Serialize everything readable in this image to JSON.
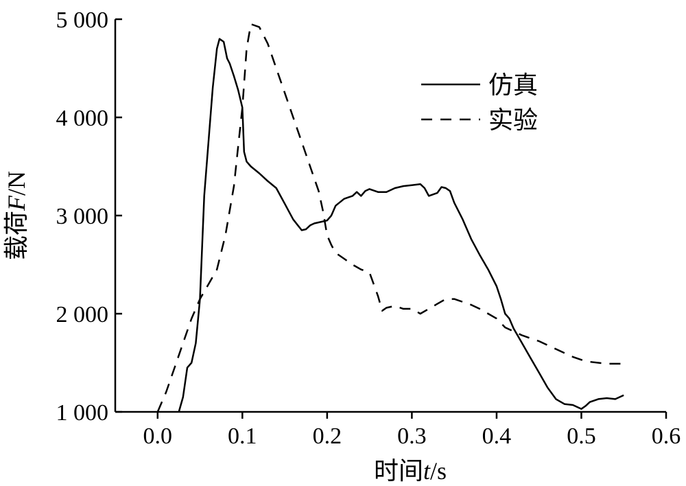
{
  "chart_data": {
    "type": "line",
    "xlabel_prefix": "时间",
    "xlabel_var": "t",
    "xlabel_unit": "/s",
    "ylabel_prefix": "载荷",
    "ylabel_var": "F",
    "ylabel_unit": "/N",
    "xlim": [
      -0.05,
      0.6
    ],
    "ylim": [
      1000,
      5000
    ],
    "xticks": [
      0.0,
      0.1,
      0.2,
      0.3,
      0.4,
      0.5,
      0.6
    ],
    "xtick_labels": [
      "0.0",
      "0.1",
      "0.2",
      "0.3",
      "0.4",
      "0.5",
      "0.6"
    ],
    "yticks": [
      1000,
      2000,
      3000,
      4000,
      5000
    ],
    "ytick_labels": [
      "1 000",
      "2 000",
      "3 000",
      "4 000",
      "5 000"
    ],
    "grid": false,
    "legend_position": "top-right",
    "series": [
      {
        "name": "仿真",
        "style": "solid",
        "x": [
          0.025,
          0.03,
          0.035,
          0.04,
          0.045,
          0.05,
          0.055,
          0.06,
          0.065,
          0.07,
          0.073,
          0.078,
          0.082,
          0.085,
          0.09,
          0.095,
          0.1,
          0.102,
          0.105,
          0.11,
          0.12,
          0.13,
          0.14,
          0.145,
          0.15,
          0.16,
          0.17,
          0.175,
          0.18,
          0.185,
          0.19,
          0.2,
          0.205,
          0.21,
          0.22,
          0.23,
          0.235,
          0.24,
          0.245,
          0.25,
          0.26,
          0.27,
          0.28,
          0.29,
          0.3,
          0.31,
          0.315,
          0.32,
          0.33,
          0.335,
          0.34,
          0.345,
          0.35,
          0.36,
          0.37,
          0.38,
          0.39,
          0.4,
          0.405,
          0.41,
          0.415,
          0.42,
          0.43,
          0.44,
          0.45,
          0.46,
          0.47,
          0.48,
          0.49,
          0.5,
          0.505,
          0.51,
          0.52,
          0.53,
          0.54,
          0.55
        ],
        "y": [
          1000,
          1150,
          1450,
          1500,
          1700,
          2150,
          3200,
          3750,
          4300,
          4700,
          4800,
          4770,
          4600,
          4550,
          4420,
          4280,
          4100,
          3650,
          3550,
          3500,
          3430,
          3350,
          3280,
          3200,
          3120,
          2960,
          2850,
          2860,
          2900,
          2920,
          2930,
          2950,
          3000,
          3100,
          3170,
          3200,
          3240,
          3200,
          3250,
          3270,
          3240,
          3240,
          3280,
          3300,
          3310,
          3320,
          3280,
          3200,
          3230,
          3290,
          3280,
          3250,
          3130,
          2960,
          2760,
          2600,
          2450,
          2280,
          2150,
          2000,
          1950,
          1850,
          1700,
          1550,
          1400,
          1250,
          1130,
          1080,
          1070,
          1030,
          1060,
          1100,
          1130,
          1140,
          1130,
          1170
        ]
      },
      {
        "name": "实验",
        "style": "dashed",
        "x": [
          0.0,
          0.01,
          0.02,
          0.03,
          0.04,
          0.05,
          0.06,
          0.07,
          0.08,
          0.09,
          0.095,
          0.1,
          0.105,
          0.11,
          0.12,
          0.13,
          0.14,
          0.15,
          0.16,
          0.17,
          0.18,
          0.19,
          0.195,
          0.2,
          0.205,
          0.21,
          0.22,
          0.23,
          0.24,
          0.25,
          0.26,
          0.265,
          0.27,
          0.28,
          0.29,
          0.3,
          0.31,
          0.32,
          0.33,
          0.34,
          0.35,
          0.36,
          0.37,
          0.38,
          0.39,
          0.4,
          0.41,
          0.42,
          0.43,
          0.44,
          0.45,
          0.46,
          0.47,
          0.48,
          0.49,
          0.5,
          0.51,
          0.52,
          0.53,
          0.54,
          0.55
        ],
        "y": [
          1000,
          1200,
          1450,
          1700,
          1950,
          2150,
          2300,
          2450,
          2800,
          3300,
          3700,
          4100,
          4700,
          4950,
          4920,
          4750,
          4500,
          4250,
          4000,
          3750,
          3500,
          3250,
          3050,
          2800,
          2700,
          2620,
          2560,
          2500,
          2450,
          2420,
          2180,
          2030,
          2060,
          2080,
          2050,
          2050,
          2000,
          2050,
          2100,
          2150,
          2150,
          2120,
          2090,
          2050,
          2000,
          1950,
          1860,
          1820,
          1780,
          1750,
          1720,
          1680,
          1640,
          1600,
          1560,
          1530,
          1510,
          1500,
          1490,
          1490,
          1490
        ]
      }
    ]
  }
}
